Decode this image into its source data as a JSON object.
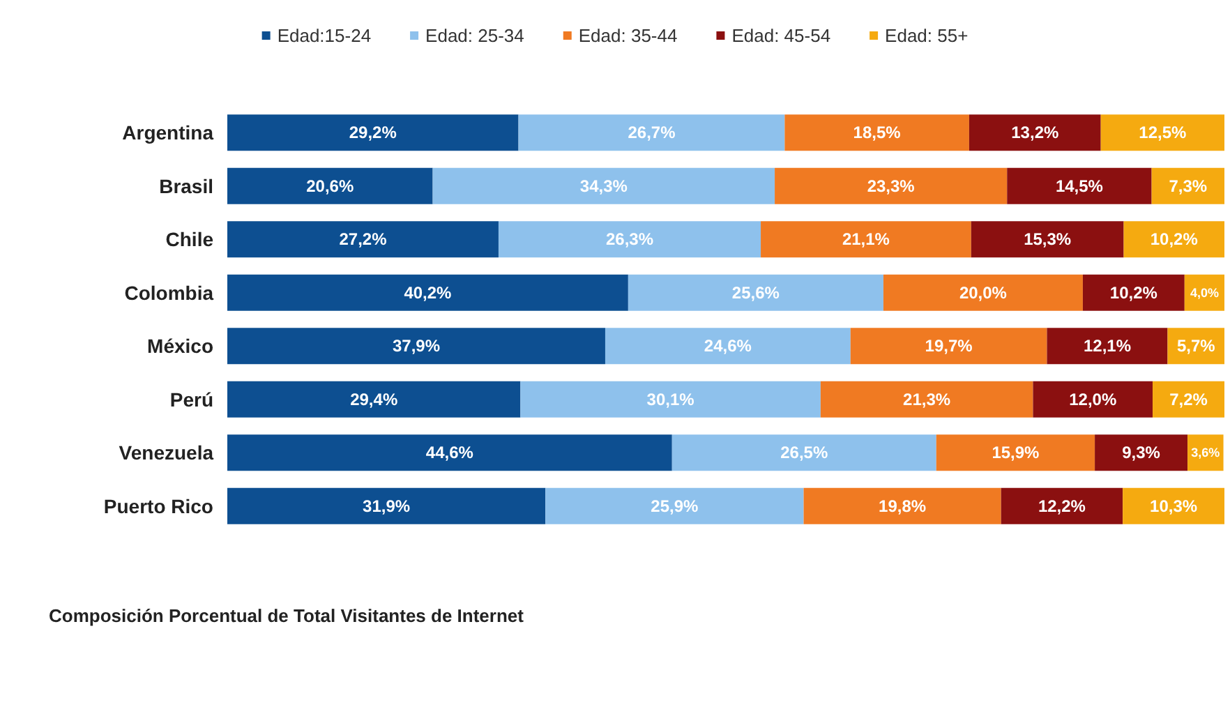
{
  "chart_data": {
    "type": "bar",
    "orientation": "horizontal",
    "stacked": true,
    "title": "Composición Porcentual de Total Visitantes de Internet",
    "categories": [
      "Argentina",
      "Brasil",
      "Chile",
      "Colombia",
      "México",
      "Perú",
      "Venezuela",
      "Puerto Rico"
    ],
    "series": [
      {
        "name": "Edad:15-24",
        "color": "#0d4f91",
        "values": [
          29.2,
          20.6,
          27.2,
          40.2,
          37.9,
          29.4,
          44.6,
          31.9
        ],
        "value_labels": [
          "29,2%",
          "20,6%",
          "27,2%",
          "40,2%",
          "37,9%",
          "29,4%",
          "44,6%",
          "31,9%"
        ]
      },
      {
        "name": "Edad: 25-34",
        "color": "#8ec1ec",
        "values": [
          26.7,
          34.3,
          26.3,
          25.6,
          24.6,
          30.1,
          26.5,
          25.9
        ],
        "value_labels": [
          "26,7%",
          "34,3%",
          "26,3%",
          "25,6%",
          "24,6%",
          "30,1%",
          "26,5%",
          "25,9%"
        ]
      },
      {
        "name": "Edad: 35-44",
        "color": "#f07a22",
        "values": [
          18.5,
          23.3,
          21.1,
          20.0,
          19.7,
          21.3,
          15.9,
          19.8
        ],
        "value_labels": [
          "18,5%",
          "23,3%",
          "21,1%",
          "20,0%",
          "19,7%",
          "21,3%",
          "15,9%",
          "19,8%"
        ]
      },
      {
        "name": "Edad: 45-54",
        "color": "#8b1010",
        "values": [
          13.2,
          14.5,
          15.3,
          10.2,
          12.1,
          12.0,
          9.3,
          12.2
        ],
        "value_labels": [
          "13,2%",
          "14,5%",
          "15,3%",
          "10,2%",
          "12,1%",
          "12,0%",
          "9,3%",
          "12,2%"
        ]
      },
      {
        "name": "Edad: 55+",
        "color": "#f5aa10",
        "values": [
          12.5,
          7.3,
          10.2,
          4.0,
          5.7,
          7.2,
          3.6,
          10.3
        ],
        "value_labels": [
          "12,5%",
          "7,3%",
          "10,2%",
          "4,0%",
          "5,7%",
          "7,2%",
          "3,6%",
          "10,3%"
        ]
      }
    ],
    "xlim": [
      0,
      100
    ],
    "tick_labels": "y",
    "grid": false,
    "legend": "top"
  }
}
